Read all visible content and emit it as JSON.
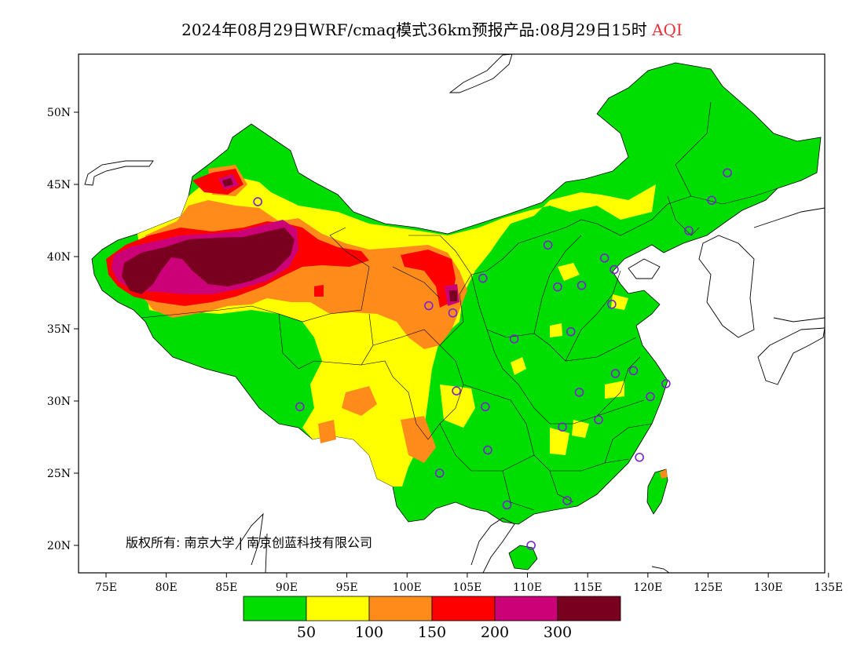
{
  "title": {
    "main": "2024年08月29日WRF/cmaq模式36km预报产品:08月29日15时",
    "variable": "AQI",
    "variable_color": "#e8333a"
  },
  "axes": {
    "lat_labels": [
      "50N",
      "45N",
      "40N",
      "35N",
      "30N",
      "25N",
      "20N"
    ],
    "lat_values": [
      50,
      45,
      40,
      35,
      30,
      25,
      20
    ],
    "lon_labels": [
      "75E",
      "80E",
      "85E",
      "90E",
      "95E",
      "100E",
      "105E",
      "110E",
      "115E",
      "120E",
      "125E",
      "130E",
      "135E"
    ],
    "lon_values": [
      75,
      80,
      85,
      90,
      95,
      100,
      105,
      110,
      115,
      120,
      125,
      130,
      135
    ],
    "lat_range": [
      18,
      54
    ],
    "lon_range": [
      73,
      135
    ]
  },
  "credit": "版权所有: 南京大学 | 南京创蓝科技有限公司",
  "legend": {
    "colors": [
      "#00dd00",
      "#ffff00",
      "#ff8c1a",
      "#ff0000",
      "#cc0077",
      "#7a0020"
    ],
    "categories": [
      "0-50",
      "50-100",
      "100-150",
      "150-200",
      "200-300",
      ">300"
    ],
    "labels": [
      "50",
      "100",
      "150",
      "200",
      "300"
    ]
  },
  "stations": [
    {
      "lon": 126.6,
      "lat": 45.8
    },
    {
      "lon": 125.3,
      "lat": 43.9
    },
    {
      "lon": 123.4,
      "lat": 41.8
    },
    {
      "lon": 116.4,
      "lat": 39.9
    },
    {
      "lon": 117.2,
      "lat": 39.1
    },
    {
      "lon": 114.5,
      "lat": 38.0
    },
    {
      "lon": 112.5,
      "lat": 37.9
    },
    {
      "lon": 111.7,
      "lat": 40.8
    },
    {
      "lon": 117.0,
      "lat": 36.7
    },
    {
      "lon": 113.6,
      "lat": 34.8
    },
    {
      "lon": 108.9,
      "lat": 34.3
    },
    {
      "lon": 103.8,
      "lat": 36.1
    },
    {
      "lon": 101.8,
      "lat": 36.6
    },
    {
      "lon": 106.3,
      "lat": 38.5
    },
    {
      "lon": 87.6,
      "lat": 43.8
    },
    {
      "lon": 91.1,
      "lat": 29.6
    },
    {
      "lon": 104.1,
      "lat": 30.7
    },
    {
      "lon": 106.5,
      "lat": 29.6
    },
    {
      "lon": 106.7,
      "lat": 26.6
    },
    {
      "lon": 102.7,
      "lat": 25.0
    },
    {
      "lon": 108.3,
      "lat": 22.8
    },
    {
      "lon": 113.3,
      "lat": 23.1
    },
    {
      "lon": 110.3,
      "lat": 20.0
    },
    {
      "lon": 112.9,
      "lat": 28.2
    },
    {
      "lon": 114.3,
      "lat": 30.6
    },
    {
      "lon": 115.9,
      "lat": 28.7
    },
    {
      "lon": 117.3,
      "lat": 31.9
    },
    {
      "lon": 118.8,
      "lat": 32.1
    },
    {
      "lon": 120.2,
      "lat": 30.3
    },
    {
      "lon": 121.5,
      "lat": 31.2
    },
    {
      "lon": 119.3,
      "lat": 26.1
    }
  ]
}
